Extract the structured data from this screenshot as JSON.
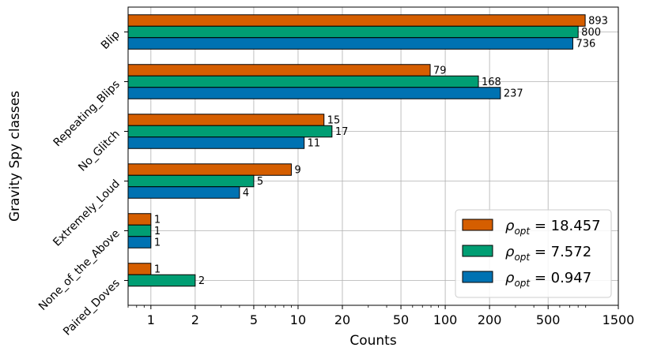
{
  "chart_data": {
    "type": "bar",
    "orientation": "horizontal",
    "x_scale": "log",
    "xlabel": "Counts",
    "ylabel": "Gravity Spy classes",
    "xlim": [
      0.7,
      1500
    ],
    "xticks": [
      1,
      2,
      5,
      10,
      20,
      50,
      100,
      200,
      500,
      1500
    ],
    "xtick_labels": [
      "1",
      "2",
      "5",
      "10",
      "20",
      "50",
      "100",
      "200",
      "500",
      "1500"
    ],
    "grid": true,
    "legend_position": "bottom-right",
    "categories": [
      "Blip",
      "Repeating_Blips",
      "No_Glitch",
      "Extremely_Loud",
      "None_of_the_Above",
      "Paired_Doves"
    ],
    "series": [
      {
        "name": "ρ_opt = 18.457",
        "legend_prefix": "ρ",
        "legend_sub": "opt",
        "legend_value": " = 18.457",
        "color": "#d55e00",
        "values": [
          893,
          79,
          15,
          9,
          1,
          1
        ]
      },
      {
        "name": "ρ_opt = 7.572",
        "legend_prefix": "ρ",
        "legend_sub": "opt",
        "legend_value": " = 7.572",
        "color": "#009e73",
        "values": [
          800,
          168,
          17,
          5,
          1,
          2
        ]
      },
      {
        "name": "ρ_opt = 0.947",
        "legend_prefix": "ρ",
        "legend_sub": "opt",
        "legend_value": " = 0.947",
        "color": "#0072b2",
        "values": [
          736,
          237,
          11,
          4,
          1,
          null
        ]
      }
    ]
  }
}
